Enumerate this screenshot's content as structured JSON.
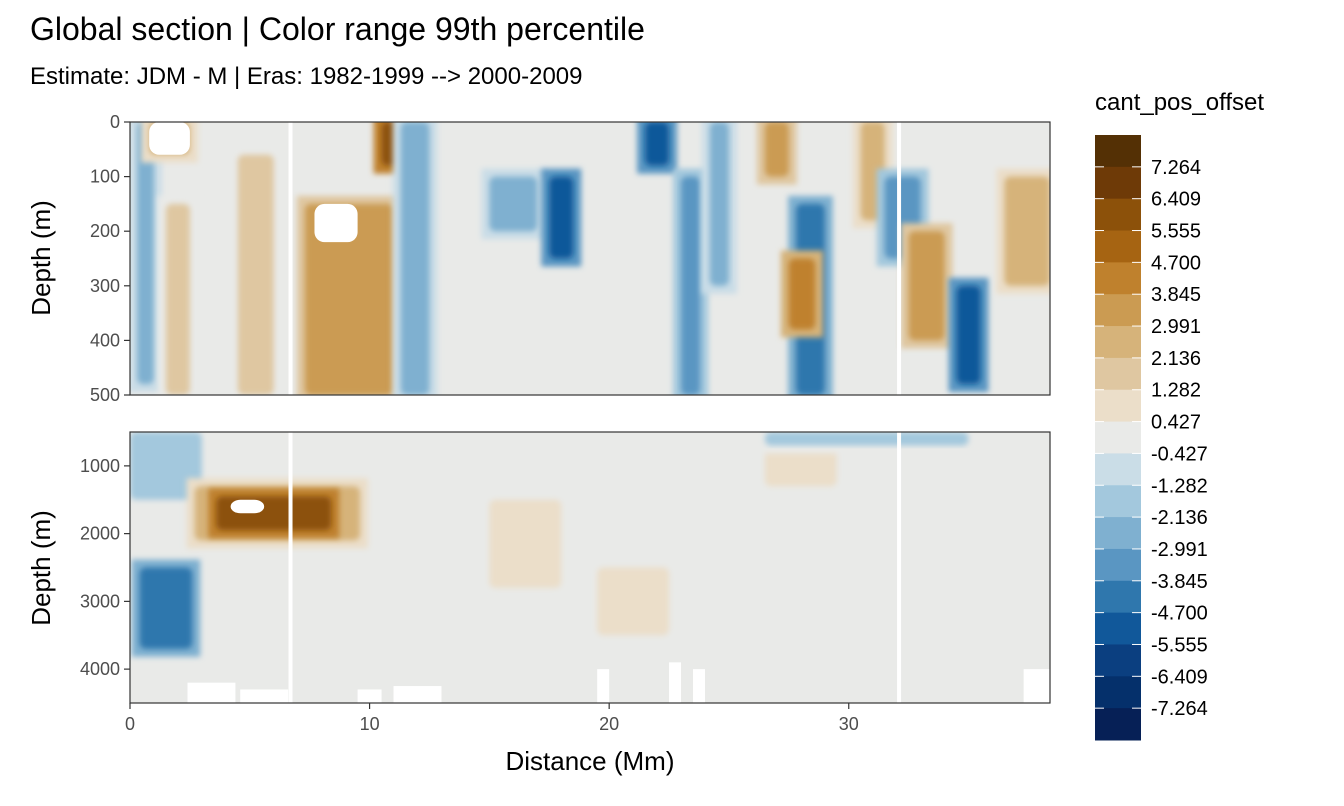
{
  "chart_data": {
    "type": "heatmap",
    "title": "Global section | Color range 99th percentile",
    "subtitle": "Estimate: JDM - M | Eras: 1982-1999 --> 2000-2009",
    "xlabel": "Distance (Mm)",
    "ylabel_top": "Depth (m)",
    "ylabel_bottom": "Depth (m)",
    "xlim": [
      0,
      38.4
    ],
    "x_ticks": [
      "0",
      "10",
      "20",
      "30"
    ],
    "x_tick_values": [
      0,
      10,
      20,
      30
    ],
    "panels": [
      {
        "ylim": [
          0,
          500
        ],
        "y_ticks": [
          "0",
          "100",
          "200",
          "300",
          "400",
          "500"
        ],
        "y_tick_values": [
          0,
          100,
          200,
          300,
          400,
          500
        ],
        "features": [
          {
            "x": [
              0.3,
              1.0
            ],
            "y": [
              0,
              480
            ],
            "level": -3
          },
          {
            "x": [
              0.8,
              2.5
            ],
            "y": [
              0,
              60
            ],
            "level": 3
          },
          {
            "x": [
              1.5,
              2.5
            ],
            "y": [
              150,
              500
            ],
            "level": 2
          },
          {
            "x": [
              4.5,
              6.0
            ],
            "y": [
              60,
              500
            ],
            "level": 2
          },
          {
            "x": [
              7.3,
              11.0
            ],
            "y": [
              150,
              500
            ],
            "level": 4
          },
          {
            "x": [
              10.5,
              11.3
            ],
            "y": [
              0,
              80
            ],
            "level": 7
          },
          {
            "x": [
              11.3,
              12.5
            ],
            "y": [
              0,
              500
            ],
            "level": -3
          },
          {
            "x": [
              15.0,
              17.0
            ],
            "y": [
              100,
              200
            ],
            "level": -3
          },
          {
            "x": [
              17.5,
              18.5
            ],
            "y": [
              100,
              250
            ],
            "level": -6
          },
          {
            "x": [
              21.5,
              22.5
            ],
            "y": [
              0,
              80
            ],
            "level": -6
          },
          {
            "x": [
              23.0,
              23.8
            ],
            "y": [
              100,
              500
            ],
            "level": -4
          },
          {
            "x": [
              24.2,
              25.0
            ],
            "y": [
              0,
              300
            ],
            "level": -3
          },
          {
            "x": [
              26.5,
              27.5
            ],
            "y": [
              0,
              100
            ],
            "level": 4
          },
          {
            "x": [
              27.8,
              29.0
            ],
            "y": [
              150,
              500
            ],
            "level": -5
          },
          {
            "x": [
              27.5,
              28.6
            ],
            "y": [
              250,
              380
            ],
            "level": 5
          },
          {
            "x": [
              30.5,
              31.5
            ],
            "y": [
              0,
              180
            ],
            "level": 3
          },
          {
            "x": [
              31.5,
              33.0
            ],
            "y": [
              100,
              250
            ],
            "level": -4
          },
          {
            "x": [
              32.5,
              34.0
            ],
            "y": [
              200,
              400
            ],
            "level": 4
          },
          {
            "x": [
              34.5,
              35.5
            ],
            "y": [
              300,
              480
            ],
            "level": -6
          },
          {
            "x": [
              36.5,
              38.4
            ],
            "y": [
              100,
              300
            ],
            "level": 3
          }
        ]
      },
      {
        "ylim": [
          500,
          4500
        ],
        "y_ticks": [
          "1000",
          "2000",
          "3000",
          "4000"
        ],
        "y_tick_values": [
          1000,
          2000,
          3000,
          4000
        ],
        "features": [
          {
            "x": [
              0,
              3.0
            ],
            "y": [
              500,
              1500
            ],
            "level": -2
          },
          {
            "x": [
              0.4,
              2.6
            ],
            "y": [
              2500,
              3700
            ],
            "level": -5
          },
          {
            "x": [
              2.7,
              9.6
            ],
            "y": [
              1300,
              2100
            ],
            "level": 3
          },
          {
            "x": [
              3.6,
              8.4
            ],
            "y": [
              1450,
              1950
            ],
            "level": 7
          },
          {
            "x": [
              15.0,
              18.0
            ],
            "y": [
              1500,
              2800
            ],
            "level": 1
          },
          {
            "x": [
              19.5,
              22.5
            ],
            "y": [
              2500,
              3500
            ],
            "level": 1
          },
          {
            "x": [
              26.5,
              29.5
            ],
            "y": [
              500,
              1300
            ],
            "level": 1
          },
          {
            "x": [
              26.5,
              35.0
            ],
            "y": [
              500,
              700
            ],
            "level": -2
          }
        ],
        "gaps": [
          {
            "x": [
              2.4,
              4.4
            ],
            "y": [
              4200,
              4500
            ]
          },
          {
            "x": [
              4.6,
              6.6
            ],
            "y": [
              4300,
              4500
            ]
          },
          {
            "x": [
              9.5,
              10.5
            ],
            "y": [
              4300,
              4500
            ]
          },
          {
            "x": [
              11.0,
              13.0
            ],
            "y": [
              4250,
              4500
            ]
          },
          {
            "x": [
              19.5,
              20.0
            ],
            "y": [
              4000,
              4500
            ]
          },
          {
            "x": [
              22.5,
              23.0
            ],
            "y": [
              3900,
              4500
            ]
          },
          {
            "x": [
              23.5,
              24.0
            ],
            "y": [
              4000,
              4500
            ]
          },
          {
            "x": [
              37.3,
              38.4
            ],
            "y": [
              4000,
              4500
            ]
          }
        ]
      }
    ],
    "white_columns": [
      6.7,
      32.1
    ],
    "missing_top": [
      {
        "x": [
          0.8,
          2.5
        ],
        "y": [
          0,
          60
        ]
      },
      {
        "x": [
          7.7,
          9.5
        ],
        "y": [
          150,
          220
        ]
      }
    ],
    "missing_bottom": [
      {
        "x": [
          4.2,
          5.6
        ],
        "y": [
          1500,
          1700
        ]
      }
    ],
    "legend": {
      "title": "cant_pos_offset",
      "labels": [
        "7.264",
        "6.409",
        "5.555",
        "4.700",
        "3.845",
        "2.991",
        "2.136",
        "1.282",
        "0.427",
        "-0.427",
        "-1.282",
        "-2.136",
        "-2.991",
        "-3.845",
        "-4.700",
        "-5.555",
        "-6.409",
        "-7.264"
      ],
      "colors": [
        "#543005",
        "#6e3a07",
        "#8c510a",
        "#a66412",
        "#bf812d",
        "#cb9b52",
        "#d6b37a",
        "#dfc7a1",
        "#ebdec9",
        "#e9eae8",
        "#cadde7",
        "#a3c8dd",
        "#7fb0d0",
        "#5a96c2",
        "#2f77ad",
        "#11589a",
        "#0b3f80",
        "#05306b",
        "#062056"
      ]
    }
  }
}
